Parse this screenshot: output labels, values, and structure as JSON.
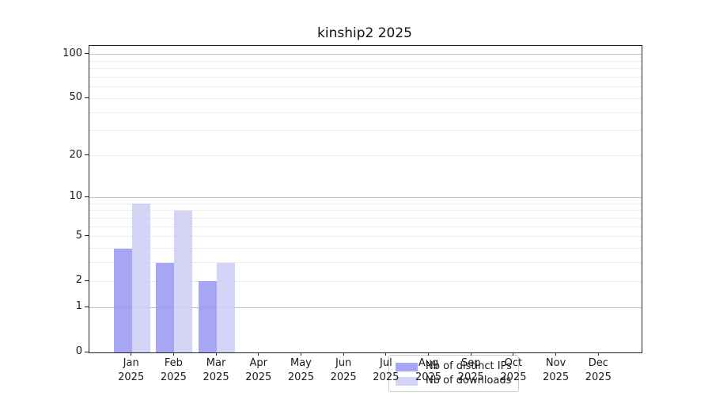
{
  "chart_data": {
    "type": "bar",
    "title": "kinship2 2025",
    "categories": [
      {
        "month": "Jan",
        "year": "2025"
      },
      {
        "month": "Feb",
        "year": "2025"
      },
      {
        "month": "Mar",
        "year": "2025"
      },
      {
        "month": "Apr",
        "year": "2025"
      },
      {
        "month": "May",
        "year": "2025"
      },
      {
        "month": "Jun",
        "year": "2025"
      },
      {
        "month": "Jul",
        "year": "2025"
      },
      {
        "month": "Aug",
        "year": "2025"
      },
      {
        "month": "Sep",
        "year": "2025"
      },
      {
        "month": "Oct",
        "year": "2025"
      },
      {
        "month": "Nov",
        "year": "2025"
      },
      {
        "month": "Dec",
        "year": "2025"
      }
    ],
    "series": [
      {
        "name": "Nb of distinct IPs",
        "color": "#9696f2",
        "values": [
          4,
          3,
          2,
          0,
          0,
          0,
          0,
          0,
          0,
          0,
          0,
          0
        ]
      },
      {
        "name": "Nb of downloads",
        "color": "#cdcdf6",
        "values": [
          9,
          8,
          3,
          0,
          0,
          0,
          0,
          0,
          0,
          0,
          0,
          0
        ]
      }
    ],
    "bar_alpha": 0.85,
    "yscale": "log1p",
    "ylim": [
      0,
      114
    ],
    "yticks": [
      0,
      1,
      2,
      5,
      10,
      20,
      50,
      100
    ],
    "major_gridlines": [
      1,
      10,
      100
    ],
    "minor_gridlines": [
      2,
      3,
      4,
      5,
      6,
      7,
      8,
      9,
      20,
      30,
      40,
      50,
      60,
      70,
      80,
      90
    ],
    "grid": true,
    "legend_position": "lower center",
    "xlabel": "",
    "ylabel": ""
  }
}
